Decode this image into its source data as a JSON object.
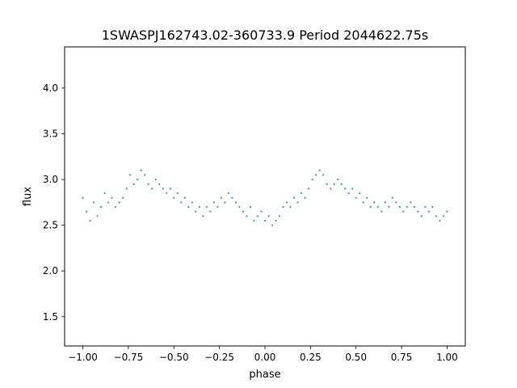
{
  "chart_data": {
    "type": "scatter",
    "title": "1SWASPJ162743.02-360733.9 Period 2044622.75s",
    "xlabel": "phase",
    "ylabel": "flux",
    "xlim": [
      -1.1,
      1.1
    ],
    "ylim": [
      1.18,
      4.45
    ],
    "grid": false,
    "legend": "none",
    "marker_color": "#1f77b4",
    "x_ticks": [
      {
        "value": -1.0,
        "label": "−1.00"
      },
      {
        "value": -0.75,
        "label": "−0.75"
      },
      {
        "value": -0.5,
        "label": "−0.50"
      },
      {
        "value": -0.25,
        "label": "−0.25"
      },
      {
        "value": 0.0,
        "label": "0.00"
      },
      {
        "value": 0.25,
        "label": "0.25"
      },
      {
        "value": 0.5,
        "label": "0.50"
      },
      {
        "value": 0.75,
        "label": "0.75"
      },
      {
        "value": 1.0,
        "label": "1.00"
      }
    ],
    "y_ticks": [
      {
        "value": 1.5,
        "label": "1.5"
      },
      {
        "value": 2.0,
        "label": "2.0"
      },
      {
        "value": 2.5,
        "label": "2.5"
      },
      {
        "value": 3.0,
        "label": "3.0"
      },
      {
        "value": 3.5,
        "label": "3.5"
      },
      {
        "value": 4.0,
        "label": "4.0"
      }
    ],
    "series": [
      {
        "x": [
          -1.0,
          -0.98,
          -0.96,
          -0.94,
          -0.92,
          -0.9,
          -0.88,
          -0.86,
          -0.84,
          -0.82,
          -0.8,
          -0.78,
          -0.76,
          -0.74,
          -0.72,
          -0.7,
          -0.68,
          -0.66,
          -0.64,
          -0.62,
          -0.6,
          -0.58,
          -0.56,
          -0.54,
          -0.52,
          -0.5,
          -0.48,
          -0.46,
          -0.44,
          -0.42,
          -0.4,
          -0.38,
          -0.36,
          -0.34,
          -0.32,
          -0.3,
          -0.28,
          -0.26,
          -0.24,
          -0.22,
          -0.2,
          -0.18,
          -0.16,
          -0.14,
          -0.12,
          -0.1,
          -0.08,
          -0.06,
          -0.04,
          -0.02,
          0.0,
          0.02,
          0.04,
          0.06,
          0.08,
          0.1,
          0.12,
          0.14,
          0.16,
          0.18,
          0.2,
          0.22,
          0.24,
          0.26,
          0.28,
          0.3,
          0.32,
          0.34,
          0.36,
          0.38,
          0.4,
          0.42,
          0.44,
          0.46,
          0.48,
          0.5,
          0.52,
          0.54,
          0.56,
          0.58,
          0.6,
          0.62,
          0.64,
          0.66,
          0.68,
          0.7,
          0.72,
          0.74,
          0.76,
          0.78,
          0.8,
          0.82,
          0.84,
          0.86,
          0.88,
          0.9,
          0.92,
          0.94,
          0.96,
          0.98,
          1.0
        ],
        "y": [
          2.8,
          2.65,
          2.55,
          2.75,
          2.6,
          2.7,
          2.85,
          2.75,
          2.8,
          2.7,
          2.75,
          2.8,
          2.9,
          3.05,
          2.95,
          3.0,
          3.1,
          3.05,
          2.95,
          2.9,
          3.0,
          2.95,
          2.9,
          2.85,
          2.9,
          2.8,
          2.85,
          2.75,
          2.8,
          2.7,
          2.75,
          2.65,
          2.7,
          2.6,
          2.7,
          2.65,
          2.75,
          2.7,
          2.8,
          2.75,
          2.85,
          2.8,
          2.75,
          2.7,
          2.65,
          2.6,
          2.7,
          2.55,
          2.6,
          2.65,
          2.55,
          2.6,
          2.5,
          2.55,
          2.6,
          2.7,
          2.75,
          2.7,
          2.8,
          2.75,
          2.85,
          2.8,
          2.9,
          3.0,
          3.05,
          3.1,
          3.05,
          2.95,
          2.9,
          2.95,
          3.0,
          2.95,
          2.9,
          2.85,
          2.9,
          2.8,
          2.85,
          2.75,
          2.8,
          2.7,
          2.75,
          2.7,
          2.65,
          2.75,
          2.7,
          2.8,
          2.75,
          2.7,
          2.65,
          2.7,
          2.75,
          2.7,
          2.65,
          2.6,
          2.7,
          2.65,
          2.7,
          2.6,
          2.55,
          2.6,
          2.65
        ]
      }
    ]
  }
}
